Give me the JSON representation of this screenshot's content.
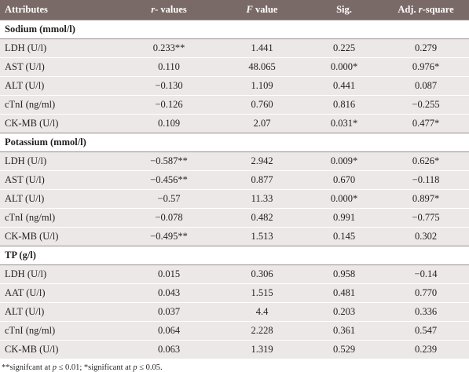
{
  "header": {
    "attributes": "Attributes",
    "r_values_italic": "r",
    "r_values_rest": "- values",
    "f_value_italic": "F",
    "f_value_rest": " value",
    "sig": "Sig.",
    "adj_prefix": "Adj. ",
    "adj_italic": "r",
    "adj_rest": "-square"
  },
  "sections": [
    {
      "title": "Sodium (mmol/l)",
      "rows": [
        {
          "attr": "LDH (U/l)",
          "r": "0.233**",
          "f": "1.441",
          "sig": "0.225",
          "adj": "0.279"
        },
        {
          "attr": "AST (U/l)",
          "r": "0.110",
          "f": "48.065",
          "sig": "0.000*",
          "adj": "0.976*"
        },
        {
          "attr": "ALT (U/l)",
          "r": "−0.130",
          "f": "1.109",
          "sig": "0.441",
          "adj": "0.087"
        },
        {
          "attr": "cTnI (ng/ml)",
          "r": "−0.126",
          "f": "0.760",
          "sig": "0.816",
          "adj": "−0.255"
        },
        {
          "attr": "CK-MB (U/l)",
          "r": "0.109",
          "f": "2.07",
          "sig": "0.031*",
          "adj": "0.477*"
        }
      ]
    },
    {
      "title": "Potassium (mmol/l)",
      "rows": [
        {
          "attr": "LDH (U/l)",
          "r": "−0.587**",
          "f": "2.942",
          "sig": "0.009*",
          "adj": "0.626*"
        },
        {
          "attr": "AST (U/l)",
          "r": "−0.456**",
          "f": "0.877",
          "sig": "0.670",
          "adj": "−0.118"
        },
        {
          "attr": "ALT (U/l)",
          "r": "−0.57",
          "f": "11.33",
          "sig": "0.000*",
          "adj": "0.897*"
        },
        {
          "attr": "cTnI (ng/ml)",
          "r": "−0.078",
          "f": "0.482",
          "sig": "0.991",
          "adj": "−0.775"
        },
        {
          "attr": "CK-MB (U/l)",
          "r": "−0.495**",
          "f": "1.513",
          "sig": "0.145",
          "adj": "0.302"
        }
      ]
    },
    {
      "title": "TP (g/l)",
      "rows": [
        {
          "attr": "LDH (U/l)",
          "r": "0.015",
          "f": "0.306",
          "sig": "0.958",
          "adj": "−0.14"
        },
        {
          "attr": "AAT (U/l)",
          "r": "0.043",
          "f": "1.515",
          "sig": "0.481",
          "adj": "0.770"
        },
        {
          "attr": "ALT (U/l)",
          "r": "0.037",
          "f": "4.4",
          "sig": "0.203",
          "adj": "0.336"
        },
        {
          "attr": "cTnI (ng/ml)",
          "r": "0.064",
          "f": "2.228",
          "sig": "0.361",
          "adj": "0.547"
        },
        {
          "attr": "CK-MB (U/l)",
          "r": "0.063",
          "f": "1.319",
          "sig": "0.529",
          "adj": "0.239"
        }
      ]
    }
  ],
  "footnote": {
    "part1": "**signifcant at ",
    "p1": "p",
    "part2": " ≤ 0.01; *significant at ",
    "p2": "p",
    "part3": " ≤ 0.05."
  }
}
